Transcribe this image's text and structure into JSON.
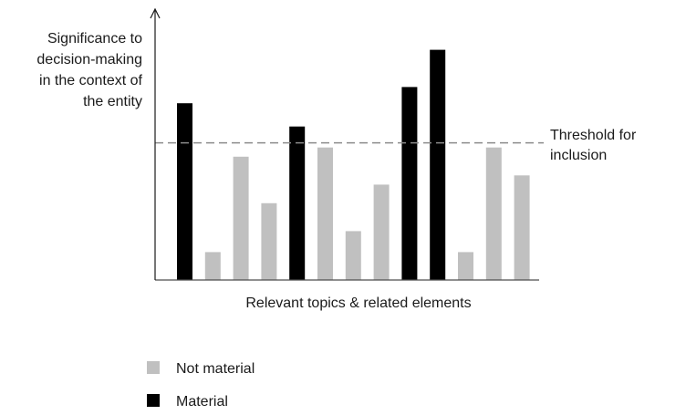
{
  "chart_data": {
    "type": "bar",
    "ylabel": [
      "Significance to",
      "decision-making",
      "in the context of",
      "the entity"
    ],
    "xlabel": "Relevant topics & related elements",
    "threshold": {
      "value": 59,
      "label": [
        "Threshold for",
        "inclusion"
      ]
    },
    "ylim": [
      0,
      100
    ],
    "series": [
      {
        "name": "Not material",
        "color": "#c0c0c0"
      },
      {
        "name": "Material",
        "color": "#000000"
      }
    ],
    "bars": [
      {
        "value": 76,
        "material": true
      },
      {
        "value": 12,
        "material": false
      },
      {
        "value": 53,
        "material": false
      },
      {
        "value": 33,
        "material": false
      },
      {
        "value": 66,
        "material": true
      },
      {
        "value": 57,
        "material": false
      },
      {
        "value": 21,
        "material": false
      },
      {
        "value": 41,
        "material": false
      },
      {
        "value": 83,
        "material": true
      },
      {
        "value": 99,
        "material": true
      },
      {
        "value": 12,
        "material": false
      },
      {
        "value": 57,
        "material": false
      },
      {
        "value": 45,
        "material": false
      }
    ],
    "grid": false,
    "legend_position": "bottom-left"
  }
}
